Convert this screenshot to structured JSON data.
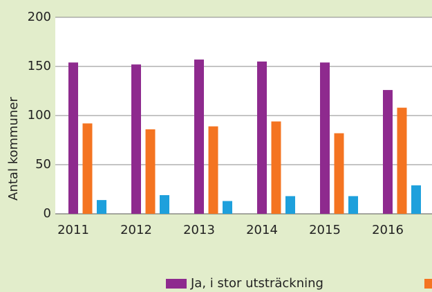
{
  "chart_data": {
    "type": "bar",
    "y_axis_label": "Antal kommuner",
    "categories": [
      "2011",
      "2012",
      "2013",
      "2014",
      "2015",
      "2016"
    ],
    "series": [
      {
        "name": "Ja, i stor utsträckning",
        "color": "#8e2a8e",
        "values": [
          154,
          152,
          157,
          155,
          154,
          126
        ]
      },
      {
        "color": "#f47421",
        "values": [
          92,
          86,
          89,
          94,
          82,
          108
        ]
      },
      {
        "color": "#1ea0dc",
        "values": [
          14,
          19,
          13,
          18,
          18,
          29
        ]
      }
    ],
    "ylim": [
      0,
      200
    ],
    "yticks": [
      0,
      50,
      100,
      150,
      200
    ],
    "grid": true
  }
}
